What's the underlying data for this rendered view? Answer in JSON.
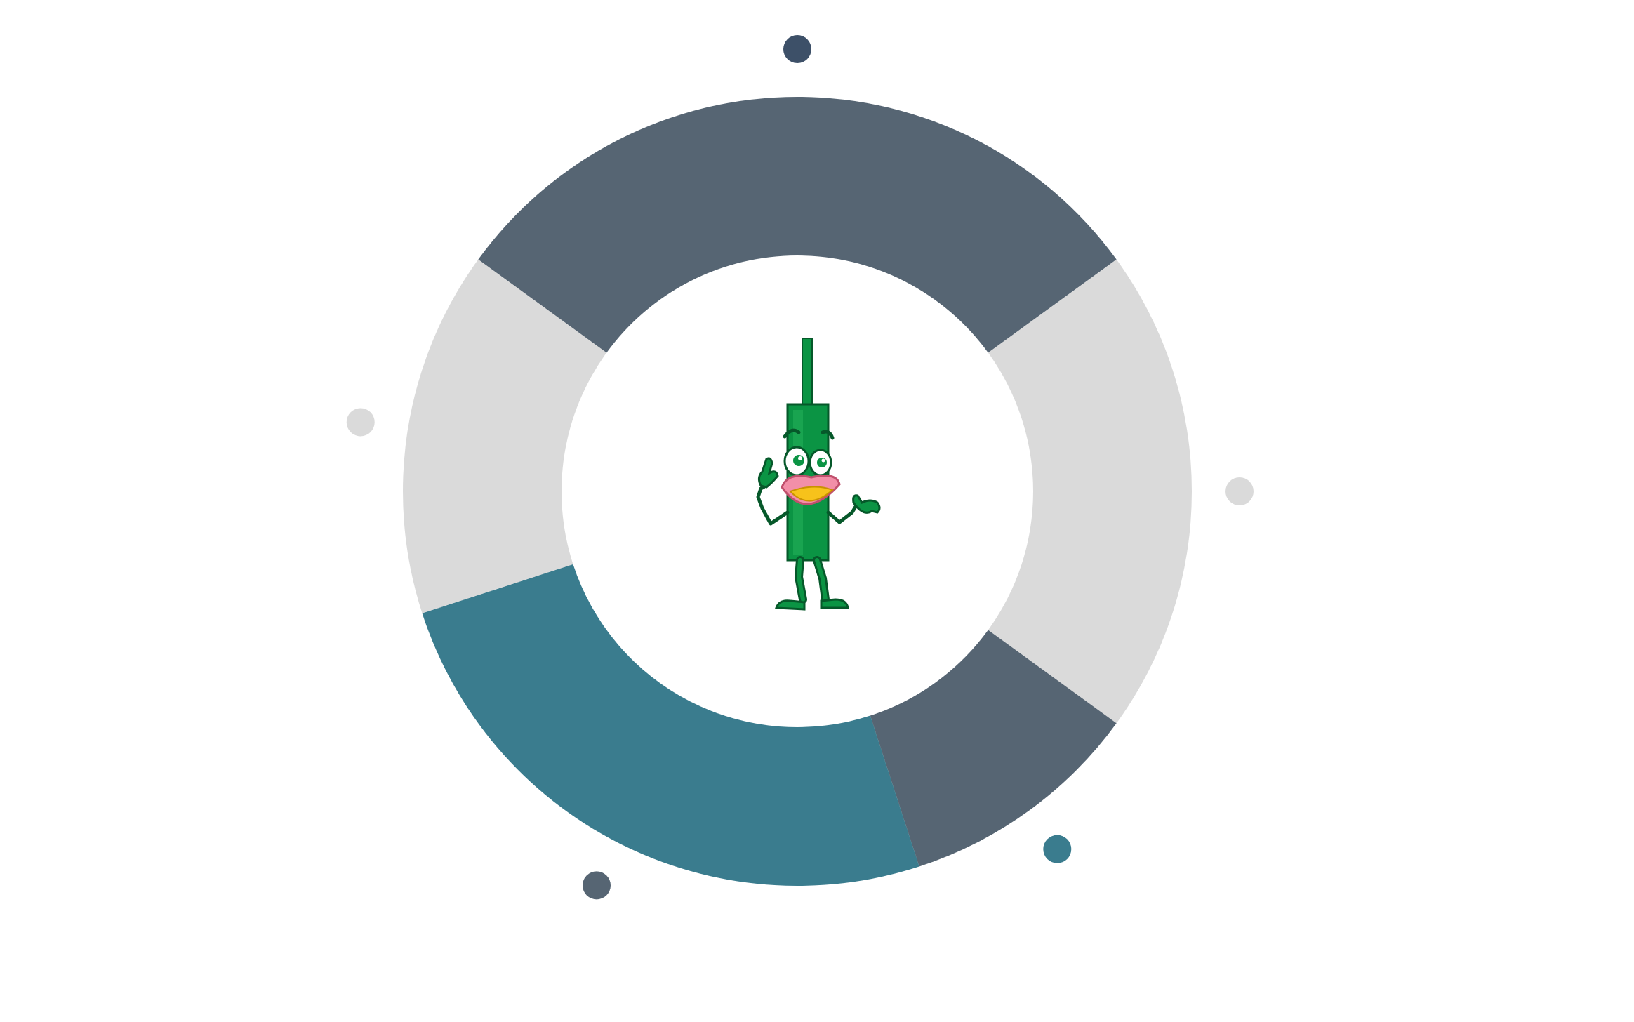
{
  "chart_data": {
    "type": "donut",
    "title": "",
    "legend": "none",
    "slices": [
      {
        "value": 30,
        "color": "#566573"
      },
      {
        "value": 20,
        "color": "#dadada"
      },
      {
        "value": 10,
        "color": "#566573"
      },
      {
        "value": 25,
        "color": "#3a7c8e"
      },
      {
        "value": 15,
        "color": "#dadada"
      }
    ],
    "markers": [
      {
        "color": "#3d5068"
      },
      {
        "color": "#dadada"
      },
      {
        "color": "#3a7c8e"
      },
      {
        "color": "#566573"
      },
      {
        "color": "#dadada"
      }
    ]
  },
  "center_graphic": {
    "icon": "green-candlestick-mascot-icon"
  }
}
